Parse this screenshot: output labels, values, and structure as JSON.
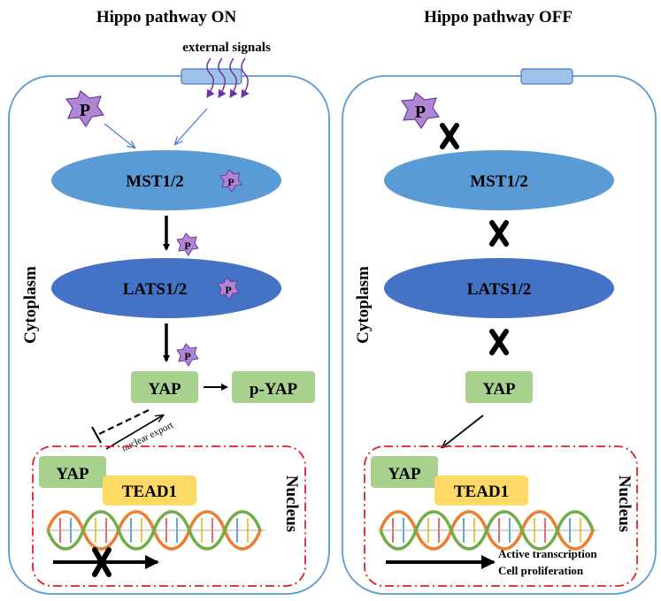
{
  "left_panel": {
    "title": "Hippo pathway ON",
    "external_signals": "external signals",
    "cytoplasm_label": "Cytoplasm",
    "nucleus_label": "Nucleus",
    "mst": "MST1/2",
    "lats": "LATS1/2",
    "yap": "YAP",
    "p_yap": "p-YAP",
    "nuclear_export": "nuclear export",
    "nucleus_yap": "YAP",
    "tead": "TEAD1",
    "phospho": "P"
  },
  "right_panel": {
    "title": "Hippo pathway OFF",
    "cytoplasm_label": "Cytoplasm",
    "nucleus_label": "Nucleus",
    "mst": "MST1/2",
    "lats": "LATS1/2",
    "yap": "YAP",
    "nucleus_yap": "YAP",
    "tead": "TEAD1",
    "phospho": "P",
    "active_transcription": "Active transcription",
    "cell_proliferation": "Cell proliferation"
  },
  "colors": {
    "cell_border": "#5b9bd5",
    "mst_fill": "#5b9bd5",
    "lats_fill": "#4472c4",
    "yap_fill": "#a9d18e",
    "tead_fill": "#ffd966",
    "phospho_fill": "#b085d6",
    "nucleus_border": "#e02020",
    "signal_arrow": "#7030a0",
    "receptor_fill": "#9dc3e6"
  }
}
